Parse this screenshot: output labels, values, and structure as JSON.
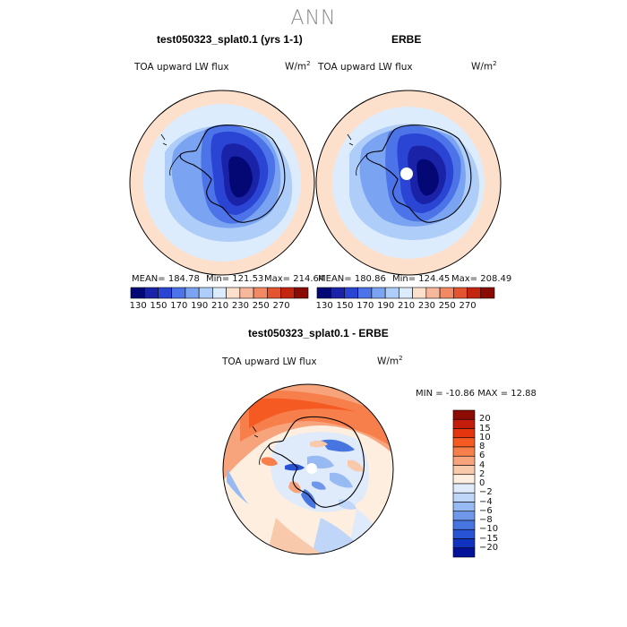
{
  "title": "ANN",
  "panels": [
    {
      "heading": "test050323_splat0.1 (yrs 1-1)",
      "variable": "TOA upward LW flux",
      "units": "W/m",
      "units_exp": "2",
      "stats": {
        "mean": "MEAN= 184.78",
        "min": "Min= 121.53",
        "max": "Max= 214.64"
      }
    },
    {
      "heading": "ERBE",
      "variable": "TOA upward LW flux",
      "units": "W/m",
      "units_exp": "2",
      "stats": {
        "mean": "MEAN= 180.86",
        "min": "Min= 124.45",
        "max": "Max= 208.49"
      }
    }
  ],
  "colorbar_top": {
    "colors": [
      "#030875",
      "#1a22a8",
      "#2a44d4",
      "#4c74e8",
      "#7aa3f2",
      "#aecdf8",
      "#dcecfc",
      "#fde0cc",
      "#f7b79a",
      "#f18a64",
      "#e4552f",
      "#c4250f",
      "#8a0b05"
    ],
    "labels": [
      "130",
      "150",
      "170",
      "190",
      "210",
      "230",
      "250",
      "270"
    ]
  },
  "diff_panel": {
    "heading": "test050323_splat0.1 - ERBE",
    "variable": "TOA upward LW flux",
    "units": "W/m",
    "units_exp": "2",
    "minmax": "MIN = -10.86 MAX =  12.88",
    "colorbar": {
      "colors": [
        "#8c0b04",
        "#c41c0a",
        "#e4350f",
        "#f45a22",
        "#f67f4c",
        "#f7a37c",
        "#f9c9ab",
        "#fdeee0",
        "#dfeafb",
        "#bfd6f8",
        "#98baf2",
        "#6f98ea",
        "#4876e0",
        "#2753d4",
        "#1134c0",
        "#04129a"
      ],
      "labels": [
        "20",
        "15",
        "10",
        "8",
        "6",
        "4",
        "2",
        "0",
        "−2",
        "−4",
        "−6",
        "−8",
        "−10",
        "−15",
        "−20"
      ]
    }
  },
  "chart_data": {
    "type": "heatmap",
    "title": "ANN",
    "description_panels": [
      "test050323_splat0.1 (yrs 1-1)",
      "ERBE",
      "test050323_splat0.1 - ERBE"
    ],
    "variable": "TOA upward LW flux (W/m2)",
    "top_colorbar_levels": [
      130,
      150,
      170,
      190,
      210,
      230,
      250,
      270
    ],
    "diff_colorbar_levels": [
      20,
      15,
      10,
      8,
      6,
      4,
      2,
      0,
      -2,
      -4,
      -6,
      -8,
      -10,
      -15,
      -20
    ],
    "stats": [
      {
        "panel": "test050323_splat0.1 (yrs 1-1)",
        "mean": 184.78,
        "min": 121.53,
        "max": 214.64
      },
      {
        "panel": "ERBE",
        "mean": 180.86,
        "min": 124.45,
        "max": 208.49
      },
      {
        "panel": "test050323_splat0.1 - ERBE",
        "min": -10.86,
        "max": 12.88
      }
    ]
  }
}
